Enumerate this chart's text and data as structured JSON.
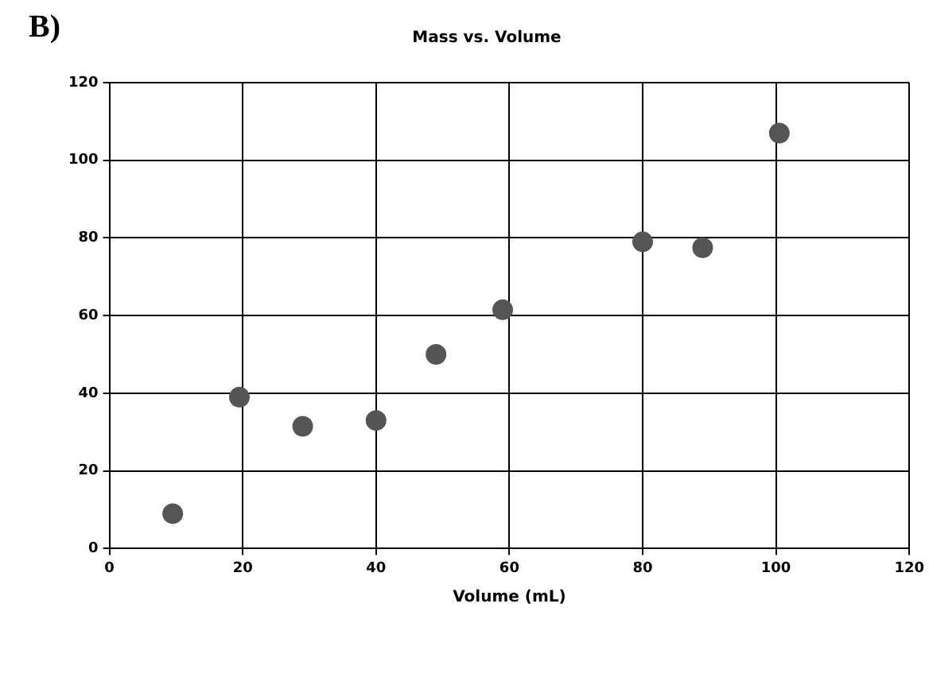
{
  "chart_data": {
    "type": "scatter",
    "title": "Mass vs. Volume",
    "xlabel": "Volume (mL)",
    "annotations": [
      "B)"
    ],
    "x": [
      9.5,
      19.5,
      29,
      40,
      49,
      59,
      80,
      89,
      100.5
    ],
    "series": [
      {
        "color": "#555555",
        "values": [
          9,
          39,
          31.5,
          33,
          50,
          61.5,
          79,
          77.5,
          107
        ]
      }
    ],
    "xlim": [
      0,
      120
    ],
    "xticks": [
      0,
      20,
      40,
      60,
      80,
      100,
      120
    ],
    "ylim": [
      0,
      120
    ],
    "yticks": [
      0,
      20,
      40,
      60,
      80,
      100,
      120
    ],
    "grid": true,
    "legend": false,
    "marker": "circle"
  }
}
